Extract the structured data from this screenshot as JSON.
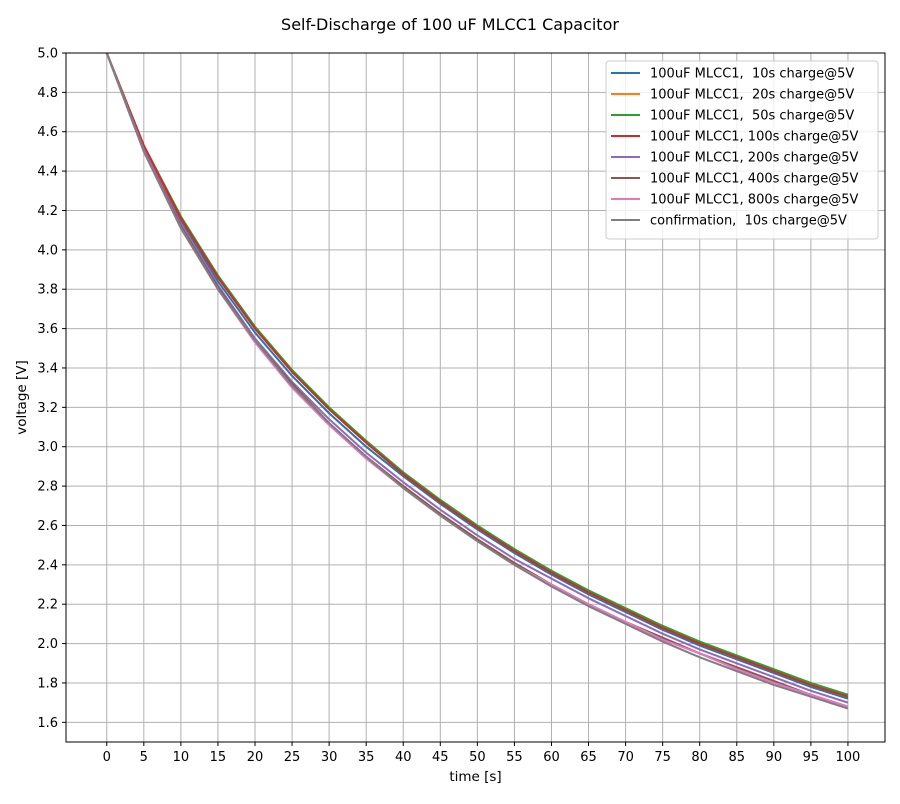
{
  "chart_data": {
    "type": "line",
    "title": "Self-Discharge of 100 uF MLCC1 Capacitor",
    "xlabel": "time [s]",
    "ylabel": "voltage [V]",
    "xlim": [
      -5.5,
      105
    ],
    "ylim": [
      1.5,
      5.0
    ],
    "x_ticks": [
      0,
      5,
      10,
      15,
      20,
      25,
      30,
      35,
      40,
      45,
      50,
      55,
      60,
      65,
      70,
      75,
      80,
      85,
      90,
      95,
      100
    ],
    "y_ticks": [
      1.6,
      1.8,
      2.0,
      2.2,
      2.4,
      2.6,
      2.8,
      3.0,
      3.2,
      3.4,
      3.6,
      3.8,
      4.0,
      4.2,
      4.4,
      4.6,
      4.8,
      5.0
    ],
    "y_tick_labels": [
      "1.6",
      "1.8",
      "2.0",
      "2.2",
      "2.4",
      "2.6",
      "2.8",
      "3.0",
      "3.2",
      "3.4",
      "3.6",
      "3.8",
      "4.0",
      "4.2",
      "4.4",
      "4.6",
      "4.8",
      "5.0"
    ],
    "grid": true,
    "legend_position": "top-right",
    "x": [
      0,
      5,
      10,
      15,
      20,
      25,
      30,
      35,
      40,
      45,
      50,
      55,
      60,
      65,
      70,
      75,
      80,
      85,
      90,
      95,
      100
    ],
    "series": [
      {
        "name": "100uF MLCC1,  10s charge@5V",
        "color": "#1f77b4",
        "values": [
          5.0,
          4.52,
          4.15,
          3.84,
          3.58,
          3.36,
          3.17,
          3.0,
          2.85,
          2.71,
          2.58,
          2.46,
          2.35,
          2.25,
          2.16,
          2.07,
          1.99,
          1.92,
          1.85,
          1.78,
          1.72
        ]
      },
      {
        "name": "100uF MLCC1,  20s charge@5V",
        "color": "#ff7f0e",
        "values": [
          5.0,
          4.53,
          4.16,
          3.86,
          3.6,
          3.38,
          3.19,
          3.02,
          2.86,
          2.72,
          2.59,
          2.47,
          2.36,
          2.26,
          2.17,
          2.08,
          2.0,
          1.93,
          1.86,
          1.79,
          1.73
        ]
      },
      {
        "name": "100uF MLCC1,  50s charge@5V",
        "color": "#2ca02c",
        "values": [
          5.0,
          4.53,
          4.17,
          3.87,
          3.61,
          3.39,
          3.2,
          3.03,
          2.87,
          2.73,
          2.6,
          2.48,
          2.37,
          2.27,
          2.18,
          2.09,
          2.01,
          1.94,
          1.87,
          1.8,
          1.74
        ]
      },
      {
        "name": "100uF MLCC1, 100s charge@5V",
        "color": "#d62728",
        "values": [
          5.0,
          4.53,
          4.16,
          3.86,
          3.6,
          3.38,
          3.19,
          3.02,
          2.86,
          2.72,
          2.59,
          2.47,
          2.36,
          2.26,
          2.17,
          2.08,
          2.0,
          1.93,
          1.86,
          1.79,
          1.73
        ]
      },
      {
        "name": "100uF MLCC1, 200s charge@5V",
        "color": "#9467bd",
        "values": [
          5.0,
          4.51,
          4.13,
          3.82,
          3.55,
          3.33,
          3.14,
          2.97,
          2.82,
          2.68,
          2.55,
          2.43,
          2.33,
          2.23,
          2.14,
          2.05,
          1.97,
          1.9,
          1.83,
          1.76,
          1.7
        ]
      },
      {
        "name": "100uF MLCC1, 400s charge@5V",
        "color": "#8c564b",
        "values": [
          5.0,
          4.5,
          4.12,
          3.81,
          3.54,
          3.32,
          3.12,
          2.95,
          2.8,
          2.66,
          2.53,
          2.41,
          2.3,
          2.2,
          2.11,
          2.03,
          1.95,
          1.88,
          1.81,
          1.74,
          1.68
        ]
      },
      {
        "name": "100uF MLCC1, 800s charge@5V",
        "color": "#e377c2",
        "values": [
          5.0,
          4.5,
          4.11,
          3.8,
          3.53,
          3.3,
          3.11,
          2.94,
          2.79,
          2.65,
          2.52,
          2.4,
          2.3,
          2.2,
          2.11,
          2.02,
          1.95,
          1.87,
          1.8,
          1.74,
          1.68
        ]
      },
      {
        "name": "confirmation,  10s charge@5V",
        "color": "#7f7f7f",
        "values": [
          5.0,
          4.5,
          4.11,
          3.8,
          3.54,
          3.31,
          3.12,
          2.95,
          2.79,
          2.65,
          2.52,
          2.4,
          2.29,
          2.19,
          2.1,
          2.01,
          1.93,
          1.86,
          1.79,
          1.73,
          1.67
        ]
      }
    ]
  }
}
